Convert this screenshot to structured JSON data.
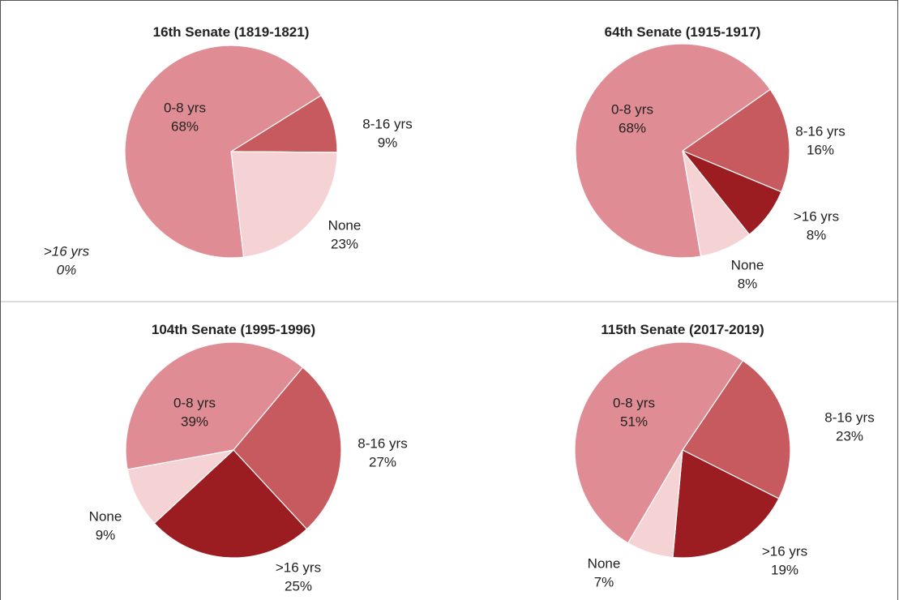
{
  "chart_data": [
    {
      "type": "pie",
      "title": "16th Senate (1819-1821)",
      "categories": [
        "8-16 yrs",
        ">16 yrs",
        "None",
        "0-8 yrs"
      ],
      "values": [
        9,
        0,
        23,
        68
      ],
      "value_labels": [
        "9%",
        "0%",
        "23%",
        "68%"
      ],
      "colors": [
        "#c75a5e",
        "#9b1c21",
        "#f5d3d5",
        "#e08c94"
      ]
    },
    {
      "type": "pie",
      "title": "64th Senate (1915-1917)",
      "categories": [
        "8-16 yrs",
        ">16 yrs",
        "None",
        "0-8 yrs"
      ],
      "values": [
        16,
        8,
        8,
        68
      ],
      "value_labels": [
        "16%",
        "8%",
        "8%",
        "68%"
      ],
      "colors": [
        "#c75a5e",
        "#9b1c21",
        "#f5d3d5",
        "#e08c94"
      ]
    },
    {
      "type": "pie",
      "title": "104th Senate (1995-1996)",
      "categories": [
        "8-16 yrs",
        ">16 yrs",
        "None",
        "0-8 yrs"
      ],
      "values": [
        27,
        25,
        9,
        39
      ],
      "value_labels": [
        "27%",
        "25%",
        "9%",
        "39%"
      ],
      "colors": [
        "#c75a5e",
        "#9b1c21",
        "#f5d3d5",
        "#e08c94"
      ]
    },
    {
      "type": "pie",
      "title": "115th Senate (2017-2019)",
      "categories": [
        "8-16 yrs",
        ">16 yrs",
        "None",
        "0-8 yrs"
      ],
      "values": [
        23,
        19,
        7,
        51
      ],
      "value_labels": [
        "23%",
        "19%",
        "7%",
        "51%"
      ],
      "colors": [
        "#c75a5e",
        "#9b1c21",
        "#f5d3d5",
        "#e08c94"
      ]
    }
  ]
}
